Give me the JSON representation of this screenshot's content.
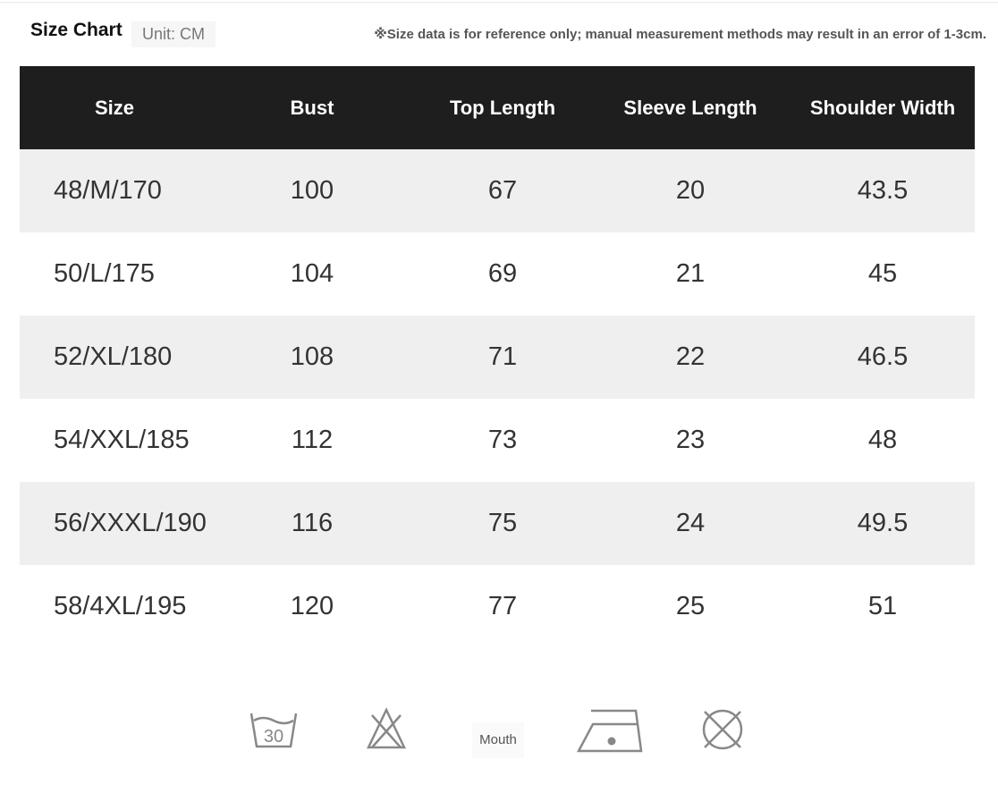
{
  "header": {
    "title": "Size Chart",
    "unit": "Unit: CM",
    "note": "※Size data is for reference only; manual measurement methods may result in an error of 1-3cm."
  },
  "table": {
    "columns": [
      "Size",
      "Bust",
      "Top Length",
      "Sleeve Length",
      "Shoulder Width"
    ],
    "rows": [
      [
        "48/M/170",
        "100",
        "67",
        "20",
        "43.5"
      ],
      [
        "50/L/175",
        "104",
        "69",
        "21",
        "45"
      ],
      [
        "52/XL/180",
        "108",
        "71",
        "22",
        "46.5"
      ],
      [
        "54/XXL/185",
        "112",
        "73",
        "23",
        "48"
      ],
      [
        "56/XXXL/190",
        "116",
        "75",
        "24",
        "49.5"
      ],
      [
        "58/4XL/195",
        "120",
        "77",
        "25",
        "51"
      ]
    ]
  },
  "care": {
    "wash_temp": "30",
    "mouth_label": "Mouth",
    "icons": [
      "wash-30-icon",
      "no-bleach-icon",
      "mouth-label",
      "iron-low-icon",
      "no-tumble-dry-icon"
    ]
  },
  "colors": {
    "header_bg": "#1e1e1e",
    "stripe": "#efefef",
    "icon": "#888888"
  }
}
